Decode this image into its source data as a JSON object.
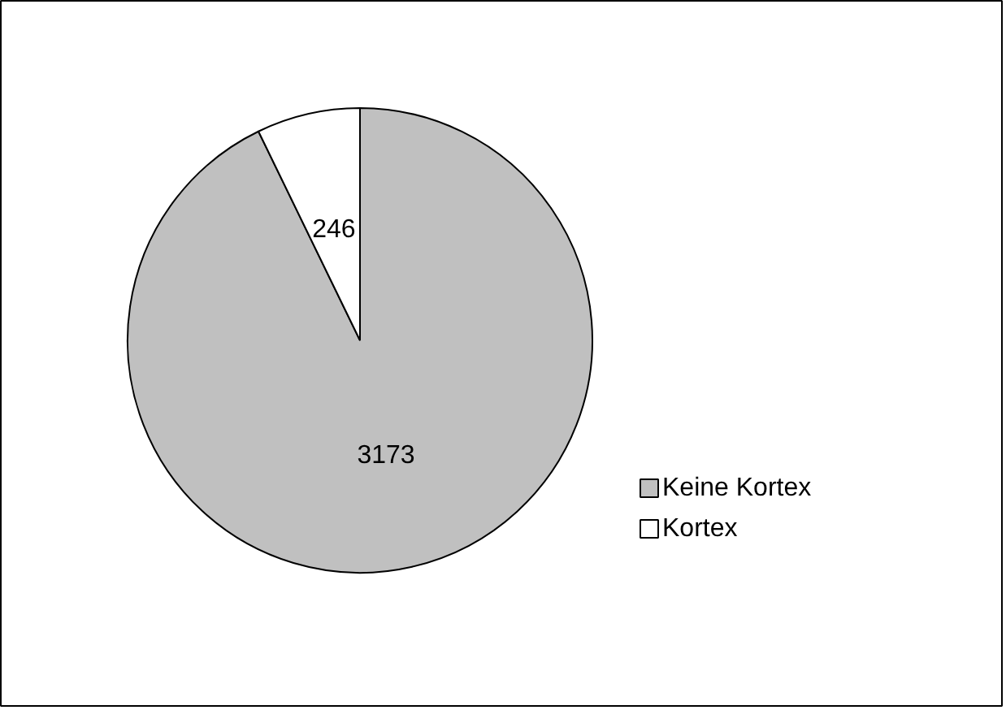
{
  "chart_data": {
    "type": "pie",
    "categories": [
      "Keine Kortex",
      "Kortex"
    ],
    "values": [
      3173,
      246
    ],
    "colors": [
      "#c0c0c0",
      "#ffffff"
    ],
    "data_labels": true,
    "legend": "right"
  }
}
